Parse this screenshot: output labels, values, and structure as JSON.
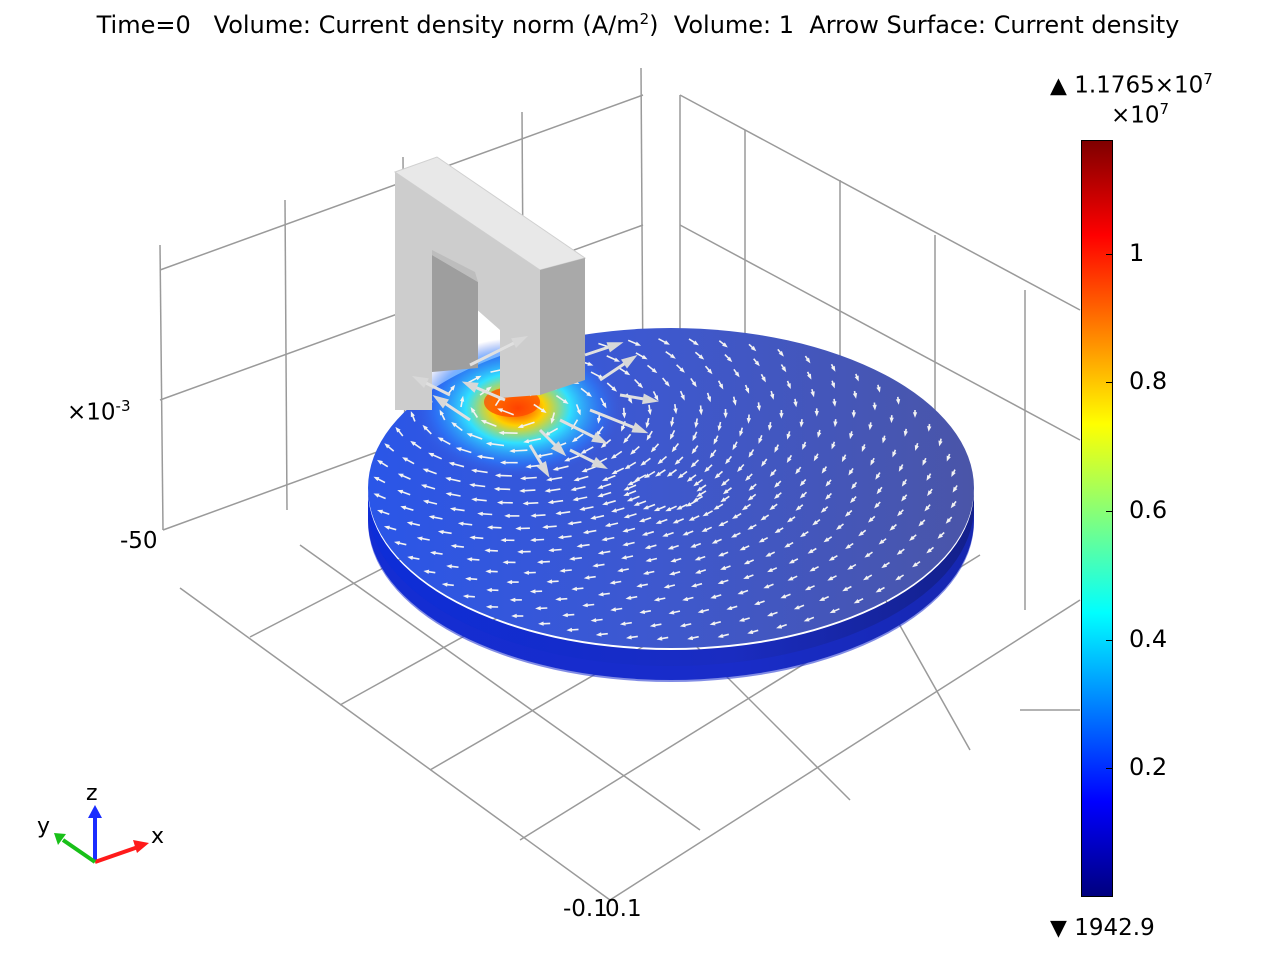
{
  "title": {
    "time": "Time=0",
    "volume_prefix": "Volume: Current density norm (A/m",
    "volume_exp": "2",
    "volume_suffix": ")",
    "volume2": "Volume: 1",
    "arrow": "Arrow Surface: Current density"
  },
  "axis_labels": {
    "z_scale_base": "×10",
    "z_scale_exp": "-3",
    "z_tick": "-50",
    "x_tick_a": "-0.1",
    "x_tick_b": "0.1"
  },
  "colorbar": {
    "max_base": "1.1765×10",
    "max_exp": "7",
    "scale_base": "×10",
    "scale_exp": "7",
    "min": "1942.9",
    "ticks": [
      "1",
      "0.8",
      "0.6",
      "0.4",
      "0.2"
    ],
    "colormap": [
      "#00007f",
      "#0000ff",
      "#007fff",
      "#00ffff",
      "#7fff7f",
      "#ffff00",
      "#ff7f00",
      "#ff0000",
      "#7f0000"
    ],
    "up_arrow": "▲",
    "down_arrow": "▼"
  },
  "triad": {
    "x": "x",
    "y": "y",
    "z": "z"
  },
  "chart_data": {
    "type": "heatmap",
    "subtype": "3D volume + arrow surface plot",
    "color_range": [
      1942.9,
      11765000
    ],
    "colorbar_ticks": [
      10000000,
      8000000,
      6000000,
      4000000,
      2000000
    ],
    "grid": true,
    "legend_placement": "right"
  }
}
